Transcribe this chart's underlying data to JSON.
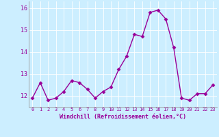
{
  "x": [
    0,
    1,
    2,
    3,
    4,
    5,
    6,
    7,
    8,
    9,
    10,
    11,
    12,
    13,
    14,
    15,
    16,
    17,
    18,
    19,
    20,
    21,
    22,
    23
  ],
  "y": [
    11.9,
    12.6,
    11.8,
    11.9,
    12.2,
    12.7,
    12.6,
    12.3,
    11.9,
    12.2,
    12.4,
    13.2,
    13.8,
    14.8,
    14.7,
    15.8,
    15.9,
    15.5,
    14.2,
    11.9,
    11.8,
    12.1,
    12.1,
    12.5
  ],
  "line_color": "#990099",
  "marker": "D",
  "marker_size": 2.5,
  "linewidth": 1.0,
  "bg_color": "#cceeff",
  "grid_color": "#ffffff",
  "xlabel": "Windchill (Refroidissement éolien,°C)",
  "xlabel_color": "#990099",
  "tick_color": "#990099",
  "ylim": [
    11.5,
    16.3
  ],
  "xlim": [
    -0.5,
    23.5
  ],
  "yticks": [
    12,
    13,
    14,
    15,
    16
  ],
  "xticks": [
    0,
    1,
    2,
    3,
    4,
    5,
    6,
    7,
    8,
    9,
    10,
    11,
    12,
    13,
    14,
    15,
    16,
    17,
    18,
    19,
    20,
    21,
    22,
    23
  ],
  "xtick_labels": [
    "0",
    "1",
    "2",
    "3",
    "4",
    "5",
    "6",
    "7",
    "8",
    "9",
    "10",
    "11",
    "12",
    "13",
    "14",
    "15",
    "16",
    "17",
    "18",
    "19",
    "20",
    "21",
    "22",
    "23"
  ]
}
